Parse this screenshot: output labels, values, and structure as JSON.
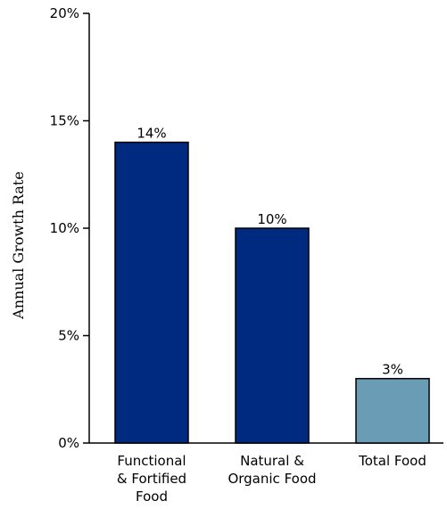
{
  "chart_data": {
    "type": "bar",
    "categories": [
      [
        "Functional",
        "& Fortified",
        "Food"
      ],
      [
        "Natural &",
        "Organic Food"
      ],
      [
        "Total Food"
      ]
    ],
    "values": [
      14,
      10,
      3
    ],
    "data_labels": [
      "14%",
      "10%",
      "3%"
    ],
    "bar_colors": [
      "#002a7f",
      "#002a7f",
      "#6a9cb5"
    ],
    "title": "",
    "xlabel": "",
    "ylabel": "Annual Growth Rate",
    "ylim": [
      0,
      20
    ],
    "yticks": [
      {
        "value": 0,
        "label": "0%"
      },
      {
        "value": 5,
        "label": "5%"
      },
      {
        "value": 10,
        "label": "10%"
      },
      {
        "value": 15,
        "label": "15%"
      },
      {
        "value": 20,
        "label": "20%"
      }
    ],
    "grid": false,
    "legend": "none"
  }
}
